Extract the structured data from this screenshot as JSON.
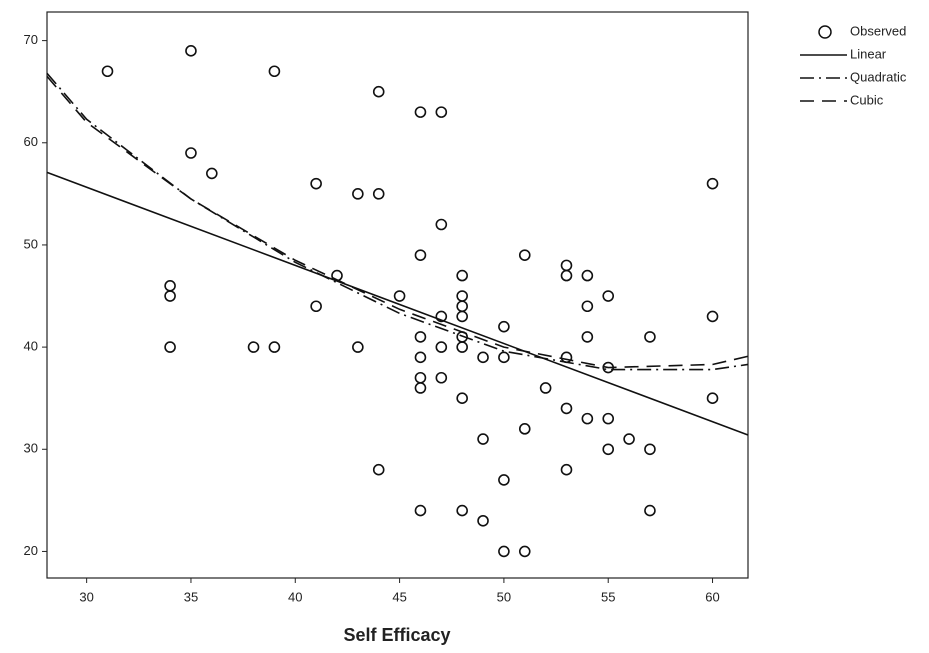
{
  "chart_data": {
    "type": "scatter",
    "x_label": "Self Efficacy",
    "xlim": [
      28.1,
      61.7
    ],
    "xticks": [
      30,
      35,
      40,
      45,
      50,
      55,
      60
    ],
    "ylim": [
      17.4,
      72.8
    ],
    "yticks": [
      20,
      30,
      40,
      50,
      60,
      70
    ],
    "legend": "top-right-outside",
    "series": [
      {
        "name": "Observed",
        "type": "scatter",
        "color": "#111111",
        "x": [
          31,
          35,
          35,
          36,
          34,
          34,
          34,
          39,
          38,
          39,
          41,
          41,
          42,
          43,
          44,
          44,
          43,
          44,
          45,
          46,
          47,
          46,
          46,
          46,
          46,
          46,
          46,
          47,
          47,
          47,
          47,
          48,
          48,
          48,
          48,
          48,
          48,
          48,
          48,
          49,
          49,
          49,
          50,
          50,
          50,
          50,
          51,
          51,
          51,
          52,
          53,
          53,
          53,
          53,
          53,
          54,
          54,
          54,
          54,
          55,
          55,
          55,
          55,
          56,
          57,
          57,
          57,
          60,
          60,
          60
        ],
        "values": [
          67,
          69,
          59,
          57,
          46,
          45,
          40,
          67,
          40,
          40,
          56,
          44,
          47,
          55,
          55,
          65,
          40,
          28,
          45,
          63,
          63,
          49,
          41,
          39,
          37,
          36,
          24,
          52,
          43,
          40,
          37,
          47,
          45,
          44,
          43,
          41,
          40,
          35,
          24,
          39,
          31,
          23,
          42,
          39,
          27,
          20,
          49,
          32,
          20,
          36,
          48,
          47,
          39,
          34,
          28,
          47,
          44,
          41,
          33,
          45,
          38,
          33,
          30,
          31,
          41,
          30,
          24,
          56,
          43,
          35
        ]
      },
      {
        "name": "Linear",
        "type": "line",
        "dash": "solid",
        "color": "#111111",
        "x": [
          28.1,
          61.7
        ],
        "values": [
          57.1,
          31.4
        ]
      },
      {
        "name": "Quadratic",
        "type": "line",
        "dash": "dash-dot",
        "color": "#111111",
        "x": [
          28.1,
          30,
          35,
          40,
          45,
          50,
          55,
          60,
          61.7
        ],
        "values": [
          66.8,
          62.3,
          54.5,
          48.3,
          43.3,
          39.6,
          37.8,
          37.8,
          38.3
        ]
      },
      {
        "name": "Cubic",
        "type": "line",
        "dash": "dash",
        "color": "#111111",
        "x": [
          28.1,
          30,
          35,
          40,
          45,
          50,
          55,
          60,
          61.7
        ],
        "values": [
          66.5,
          62,
          54.5,
          48.5,
          43.7,
          40,
          38,
          38.3,
          39.1
        ]
      }
    ]
  }
}
